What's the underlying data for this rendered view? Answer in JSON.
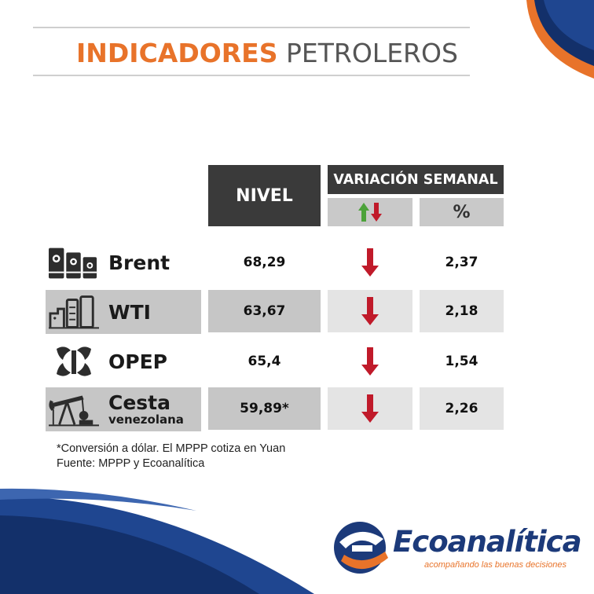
{
  "header": {
    "title_accent": "INDICADORES",
    "title_rest": "PETROLEROS"
  },
  "table": {
    "col_level": "NIVEL",
    "col_variation": "VARIACIÓN SEMANAL",
    "col_pct": "%",
    "rows": [
      {
        "name": "Brent",
        "level": "68,29",
        "direction": "down",
        "pct": "2,37",
        "icon": "oil-barrels-icon"
      },
      {
        "name": "WTI",
        "level": "63,67",
        "direction": "down",
        "pct": "2,18",
        "icon": "refinery-icon"
      },
      {
        "name": "OPEP",
        "level": "65,4",
        "direction": "down",
        "pct": "1,54",
        "icon": "opec-logo-icon"
      },
      {
        "name": "Cesta",
        "name_sub": "venezolana",
        "level": "59,89*",
        "direction": "down",
        "pct": "2,26",
        "icon": "oil-pumpjack-icon"
      }
    ]
  },
  "notes": {
    "line1": "*Conversión a dólar. El MPPP cotiza en Yuan",
    "line2": "Fuente: MPPP y Ecoanalítica"
  },
  "brand": {
    "name": "Ecoanalítica",
    "tagline": "acompañando las buenas decisiones",
    "navy": "#1c3a7a",
    "orange": "#e8732a",
    "arrow_red": "#c01a2a",
    "arrow_green": "#4ca23a"
  }
}
